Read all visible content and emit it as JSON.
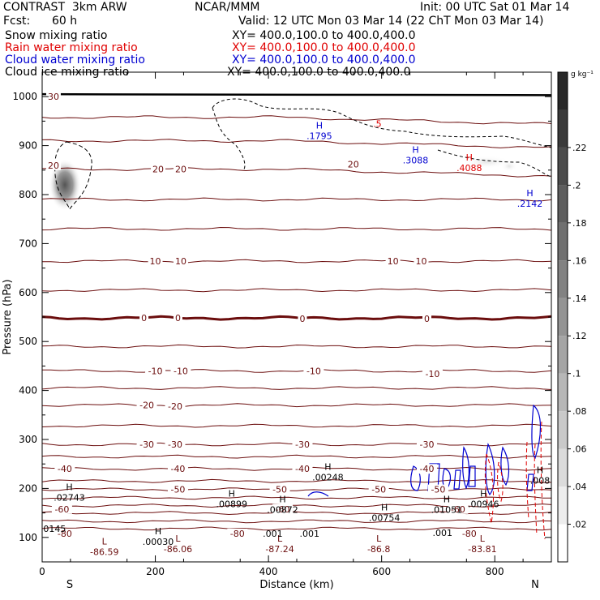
{
  "header": {
    "model": "CONTRAST  3km ARW",
    "center": "NCAR/MMM",
    "init": "Init: 00 UTC Sat 01 Mar 14",
    "fcst_label": "Fcst:",
    "fcst_value": "60 h",
    "valid": "Valid: 12 UTC Mon 03 Mar 14 (22 ChT Mon 03 Mar 14)"
  },
  "fields": [
    {
      "name": "Snow mixing ratio",
      "xy": "XY= 400.0,100.0 to 400.0,400.0",
      "color": "#000000"
    },
    {
      "name": "Rain water mixing ratio",
      "xy": "XY= 400.0,100.0 to 400.0,400.0",
      "color": "#e00000"
    },
    {
      "name": "Cloud water mixing ratio",
      "xy": "XY= 400.0,100.0 to 400.0,400.0",
      "color": "#0000d0"
    },
    {
      "name": "Cloud ice mixing ratio",
      "xy": "XY= 400.0,100.0 to 400.0,400.0",
      "color": "#000000"
    }
  ],
  "chart_data": {
    "type": "cross-section",
    "xlabel": "Distance (km)",
    "ylabel": "Pressure (hPa)",
    "x_range": [
      0,
      900
    ],
    "y_range": [
      1050,
      50
    ],
    "x_ticks": [
      0,
      200,
      400,
      600,
      800
    ],
    "y_ticks": [
      100,
      200,
      300,
      400,
      500,
      600,
      700,
      800,
      900,
      1000
    ],
    "endpoint_labels": {
      "left": "S",
      "right": "N"
    },
    "colorbar": {
      "unit": "g kg⁻¹",
      "range": [
        0,
        0.26
      ],
      "ticks": [
        ".02",
        ".04",
        ".06",
        ".08",
        ".1",
        ".12",
        ".14",
        ".16",
        ".18",
        ".2",
        ".22"
      ],
      "tick_values": [
        0.02,
        0.04,
        0.06,
        0.08,
        0.1,
        0.12,
        0.14,
        0.16,
        0.18,
        0.2,
        0.22
      ]
    },
    "temperature_isotherms": {
      "color": "#6b0d0d",
      "labels": [
        {
          "text": "-80",
          "x": 40,
          "p": 108
        },
        {
          "text": "-80",
          "x": 345,
          "p": 108
        },
        {
          "text": "-80",
          "x": 755,
          "p": 108
        },
        {
          "text": "-60",
          "x": 35,
          "p": 158
        },
        {
          "text": "-60",
          "x": 425,
          "p": 158
        },
        {
          "text": "-60",
          "x": 735,
          "p": 158
        },
        {
          "text": "-50",
          "x": 240,
          "p": 198
        },
        {
          "text": "-50",
          "x": 420,
          "p": 198
        },
        {
          "text": "-50",
          "x": 595,
          "p": 198
        },
        {
          "text": "-50",
          "x": 700,
          "p": 198
        },
        {
          "text": "-40",
          "x": 40,
          "p": 240
        },
        {
          "text": "-40",
          "x": 240,
          "p": 240
        },
        {
          "text": "-40",
          "x": 460,
          "p": 240
        },
        {
          "text": "-40",
          "x": 680,
          "p": 240
        },
        {
          "text": "-30",
          "x": 185,
          "p": 290
        },
        {
          "text": "-30",
          "x": 235,
          "p": 290
        },
        {
          "text": "-30",
          "x": 460,
          "p": 290
        },
        {
          "text": "-30",
          "x": 680,
          "p": 290
        },
        {
          "text": "-20",
          "x": 185,
          "p": 370
        },
        {
          "text": "-20",
          "x": 235,
          "p": 368
        },
        {
          "text": "-10",
          "x": 200,
          "p": 440
        },
        {
          "text": "-10",
          "x": 245,
          "p": 440
        },
        {
          "text": "-10",
          "x": 480,
          "p": 440
        },
        {
          "text": "-10",
          "x": 690,
          "p": 434
        },
        {
          "text": "0",
          "x": 180,
          "p": 548
        },
        {
          "text": "0",
          "x": 240,
          "p": 548
        },
        {
          "text": "0",
          "x": 460,
          "p": 547
        },
        {
          "text": "0",
          "x": 680,
          "p": 547
        },
        {
          "text": "10",
          "x": 200,
          "p": 664
        },
        {
          "text": "10",
          "x": 245,
          "p": 664
        },
        {
          "text": "10",
          "x": 620,
          "p": 664
        },
        {
          "text": "10",
          "x": 670,
          "p": 664
        },
        {
          "text": "20",
          "x": 20,
          "p": 860
        },
        {
          "text": "20",
          "x": 205,
          "p": 852
        },
        {
          "text": "20",
          "x": 245,
          "p": 852
        },
        {
          "text": "20",
          "x": 550,
          "p": 862
        },
        {
          "text": "30",
          "x": 20,
          "p": 1000
        }
      ]
    },
    "extrema_labels": [
      {
        "letter": "L",
        "value": "-86.59",
        "x": 110,
        "p": 82,
        "color": "#6b0d0d"
      },
      {
        "letter": "L",
        "value": "-86.06",
        "x": 240,
        "p": 88,
        "color": "#6b0d0d"
      },
      {
        "letter": "L",
        "value": "-87.24",
        "x": 420,
        "p": 88,
        "color": "#6b0d0d"
      },
      {
        "letter": "L",
        "value": "-86.8",
        "x": 595,
        "p": 88,
        "color": "#6b0d0d"
      },
      {
        "letter": "L",
        "value": "-83.81",
        "x": 778,
        "p": 88,
        "color": "#6b0d0d"
      },
      {
        "letter": "H",
        "value": ".00030",
        "x": 205,
        "p": 103,
        "color": "#000000"
      },
      {
        "letter": "H",
        "value": ".00899",
        "x": 335,
        "p": 180,
        "color": "#000000"
      },
      {
        "letter": "H",
        "value": ".00872",
        "x": 425,
        "p": 168,
        "color": "#000000"
      },
      {
        "letter": "H",
        "value": ".00754",
        "x": 605,
        "p": 152,
        "color": "#000000"
      },
      {
        "letter": "H",
        "value": ".01051",
        "x": 715,
        "p": 168,
        "color": "#000000"
      },
      {
        "letter": "H",
        "value": ".00946",
        "x": 780,
        "p": 180,
        "color": "#000000"
      },
      {
        "letter": "H",
        "value": ".02743",
        "x": 48,
        "p": 193,
        "color": "#000000"
      },
      {
        "letter": "H",
        "value": ".00248",
        "x": 505,
        "p": 235,
        "color": "#000000"
      },
      {
        "letter": "H",
        "value": ".008",
        "x": 880,
        "p": 228,
        "color": "#000000"
      },
      {
        "letter": "H",
        "value": ".1795",
        "x": 490,
        "p": 932,
        "color": "#0000d0"
      },
      {
        "letter": "H",
        "value": ".3088",
        "x": 660,
        "p": 882,
        "color": "#0000d0"
      },
      {
        "letter": "H",
        "value": ".2142",
        "x": 862,
        "p": 793,
        "color": "#0000d0"
      },
      {
        "letter": "H",
        "value": ".4088",
        "x": 755,
        "p": 866,
        "color": "#e00000"
      }
    ],
    "misc_labels": [
      {
        "text": "0145",
        "x": 2,
        "p": 118,
        "color": "#000000"
      },
      {
        "text": ".001",
        "x": 390,
        "p": 108,
        "color": "#000000"
      },
      {
        "text": ".001",
        "x": 455,
        "p": 108,
        "color": "#000000"
      },
      {
        "text": ".001",
        "x": 690,
        "p": 110,
        "color": "#000000"
      },
      {
        "text": ".5",
        "x": 585,
        "p": 945,
        "color": "#e00000"
      }
    ]
  }
}
